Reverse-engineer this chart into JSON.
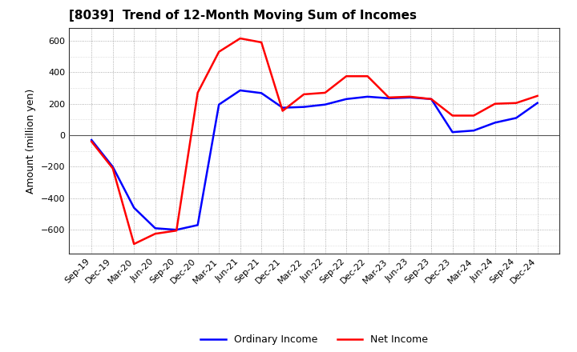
{
  "title": "[8039]  Trend of 12-Month Moving Sum of Incomes",
  "ylabel": "Amount (million yen)",
  "ylim": [
    -750,
    680
  ],
  "yticks": [
    -600,
    -400,
    -200,
    0,
    200,
    400,
    600
  ],
  "background_color": "#ffffff",
  "grid_color": "#aaaaaa",
  "x_labels": [
    "Sep-19",
    "Dec-19",
    "Mar-20",
    "Jun-20",
    "Sep-20",
    "Dec-20",
    "Mar-21",
    "Jun-21",
    "Sep-21",
    "Dec-21",
    "Mar-22",
    "Jun-22",
    "Sep-22",
    "Dec-22",
    "Mar-23",
    "Jun-23",
    "Sep-23",
    "Dec-23",
    "Mar-24",
    "Jun-24",
    "Sep-24",
    "Dec-24"
  ],
  "ordinary_income": [
    -30,
    -200,
    -460,
    -590,
    -600,
    -570,
    195,
    285,
    268,
    175,
    180,
    195,
    230,
    245,
    235,
    240,
    230,
    20,
    30,
    80,
    110,
    205
  ],
  "net_income": [
    -40,
    -210,
    -690,
    -625,
    -605,
    270,
    530,
    615,
    590,
    155,
    260,
    270,
    375,
    375,
    240,
    245,
    230,
    125,
    125,
    200,
    205,
    250
  ],
  "ordinary_color": "#0000ff",
  "net_color": "#ff0000",
  "line_width": 1.8
}
